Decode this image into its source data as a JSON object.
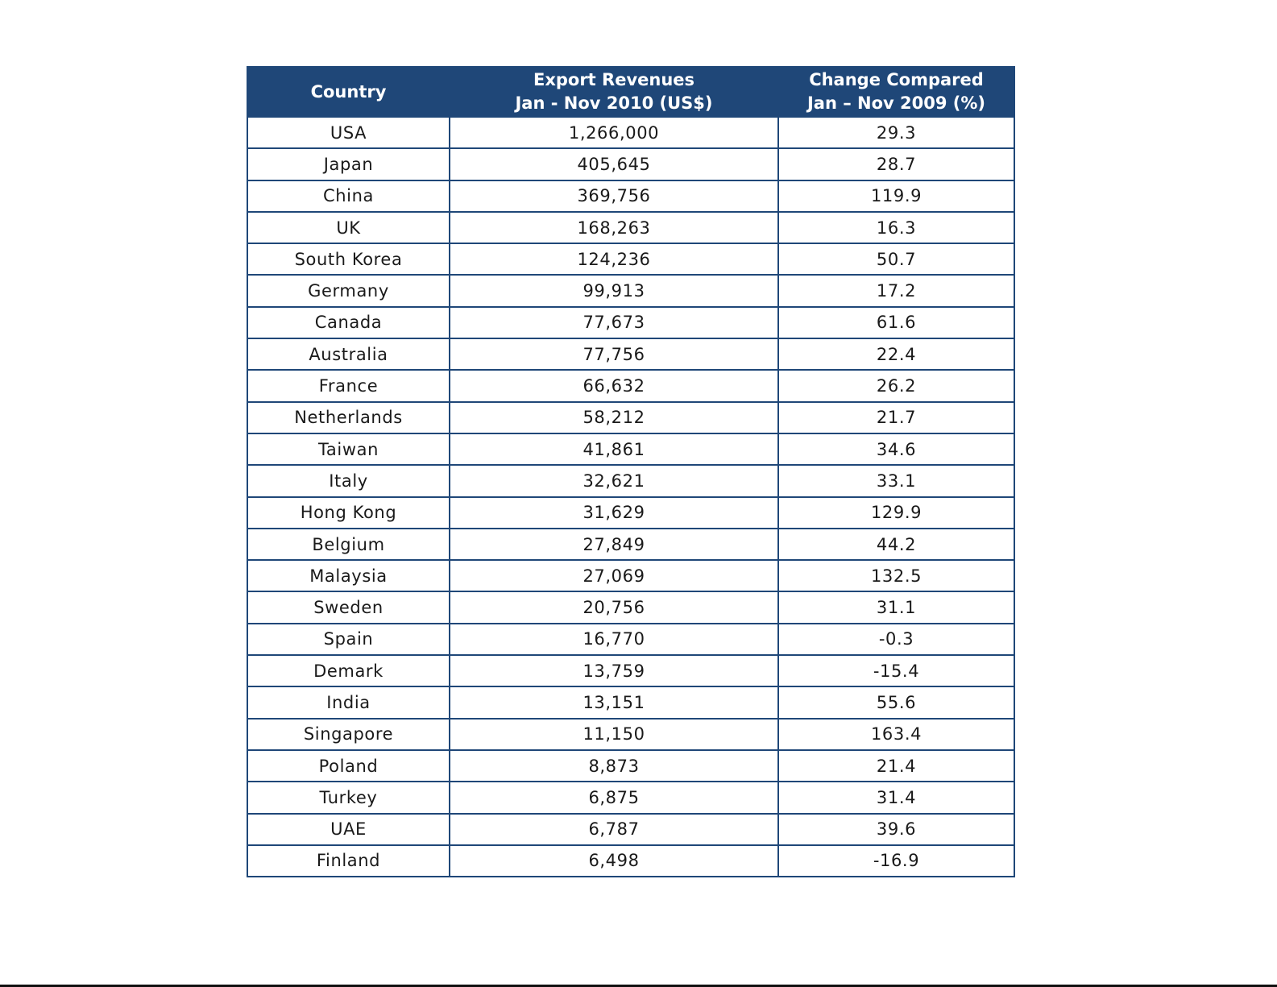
{
  "table": {
    "headers": {
      "country": "Country",
      "export_line1": "Export Revenues",
      "export_line2": "Jan - Nov 2010 (US$)",
      "change_line1": "Change Compared",
      "change_line2": "Jan – Nov 2009 (%)"
    },
    "header_color": "#1f4778",
    "border_color": "#1f4778",
    "rows": [
      {
        "country": "USA",
        "revenue": "1,266,000",
        "change": "29.3"
      },
      {
        "country": "Japan",
        "revenue": "405,645",
        "change": "28.7"
      },
      {
        "country": "China",
        "revenue": "369,756",
        "change": "119.9"
      },
      {
        "country": "UK",
        "revenue": "168,263",
        "change": "16.3"
      },
      {
        "country": "South Korea",
        "revenue": "124,236",
        "change": "50.7"
      },
      {
        "country": "Germany",
        "revenue": "99,913",
        "change": "17.2"
      },
      {
        "country": "Canada",
        "revenue": "77,673",
        "change": "61.6"
      },
      {
        "country": "Australia",
        "revenue": "77,756",
        "change": "22.4"
      },
      {
        "country": "France",
        "revenue": "66,632",
        "change": "26.2"
      },
      {
        "country": "Netherlands",
        "revenue": "58,212",
        "change": "21.7"
      },
      {
        "country": "Taiwan",
        "revenue": "41,861",
        "change": "34.6"
      },
      {
        "country": "Italy",
        "revenue": "32,621",
        "change": "33.1"
      },
      {
        "country": "Hong Kong",
        "revenue": "31,629",
        "change": "129.9"
      },
      {
        "country": "Belgium",
        "revenue": "27,849",
        "change": "44.2"
      },
      {
        "country": "Malaysia",
        "revenue": "27,069",
        "change": "132.5"
      },
      {
        "country": "Sweden",
        "revenue": "20,756",
        "change": "31.1"
      },
      {
        "country": "Spain",
        "revenue": "16,770",
        "change": "-0.3"
      },
      {
        "country": "Demark",
        "revenue": "13,759",
        "change": "-15.4"
      },
      {
        "country": "India",
        "revenue": "13,151",
        "change": "55.6"
      },
      {
        "country": "Singapore",
        "revenue": "11,150",
        "change": "163.4"
      },
      {
        "country": "Poland",
        "revenue": "8,873",
        "change": "21.4"
      },
      {
        "country": "Turkey",
        "revenue": "6,875",
        "change": "31.4"
      },
      {
        "country": "UAE",
        "revenue": "6,787",
        "change": "39.6"
      },
      {
        "country": "Finland",
        "revenue": "6,498",
        "change": "-16.9"
      }
    ]
  }
}
